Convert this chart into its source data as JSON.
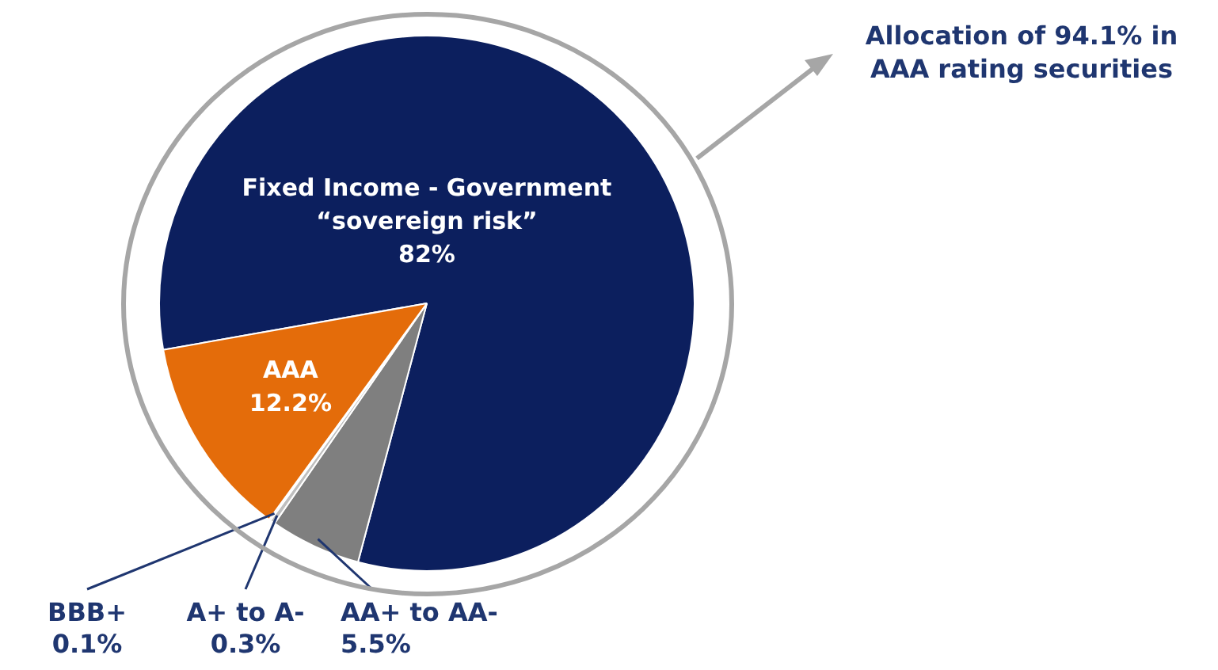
{
  "chart_data": {
    "type": "pie",
    "categories": [
      "Fixed Income - Government “sovereign risk”",
      "AA+ to AA-",
      "A+ to A-",
      "BBB+",
      "AAA"
    ],
    "values": [
      82,
      5.5,
      0.3,
      0.1,
      12.2
    ],
    "value_labels": [
      "82%",
      "5.5%",
      "0.3%",
      "0.1%",
      "12.2%"
    ],
    "colors": [
      "#0c1f5e",
      "#7f7f7f",
      "#bfbfbf",
      "#d9d9d9",
      "#e46c0a"
    ],
    "legend": false,
    "annotations": [
      "Allocation of 94.1% in AAA rating securities"
    ]
  }
}
